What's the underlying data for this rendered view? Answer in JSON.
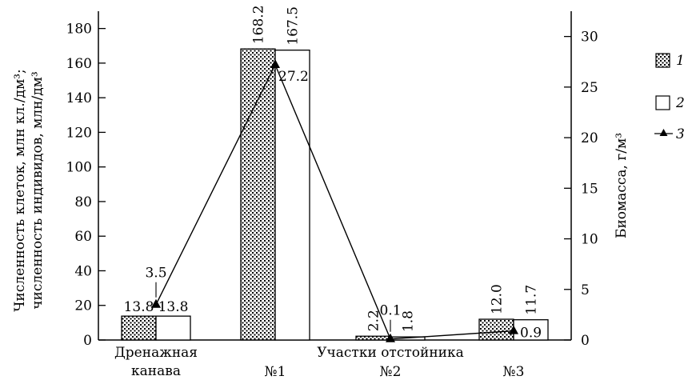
{
  "chart_data": {
    "type": "bar",
    "categories": [
      [
        "Дренажная",
        "канава"
      ],
      [
        "№1"
      ],
      [
        "№2"
      ],
      [
        "№3"
      ]
    ],
    "category_group_label": "Участки отстойника",
    "y_left": {
      "label_lines": [
        "Численность клеток, млн кл./дм³;",
        "численность индивидов, млн/дм³"
      ],
      "range": [
        0,
        190
      ],
      "ticks": [
        0,
        20,
        40,
        60,
        80,
        100,
        120,
        140,
        160,
        180
      ]
    },
    "y_right": {
      "label": "Биомасса, г/м³",
      "range": [
        0,
        32.5
      ],
      "ticks": [
        0,
        5,
        10,
        15,
        20,
        25,
        30
      ]
    },
    "series": [
      {
        "name": "1",
        "kind": "bar",
        "pattern": "dotted",
        "values": [
          13.8,
          168.2,
          2.2,
          12.0
        ],
        "labels": [
          "13.8",
          "168.2",
          "2.2",
          "12.0"
        ]
      },
      {
        "name": "2",
        "kind": "bar",
        "pattern": "open",
        "values": [
          13.8,
          167.5,
          1.8,
          11.7
        ],
        "labels": [
          "13.8",
          "167.5",
          "1.8",
          "11.7"
        ]
      },
      {
        "name": "3",
        "kind": "line",
        "axis": "right",
        "marker": "triangle",
        "values": [
          3.5,
          27.2,
          0.1,
          0.9
        ],
        "labels": [
          "3.5",
          "27.2",
          "0.1",
          "0.9"
        ]
      }
    ],
    "legend": {
      "placement": "right",
      "entries": [
        "1",
        "2",
        "3"
      ]
    },
    "grid": false
  }
}
